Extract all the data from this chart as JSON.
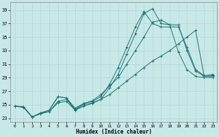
{
  "xlabel": "Humidex (Indice chaleur)",
  "xlim": [
    -0.5,
    23.5
  ],
  "ylim": [
    22.5,
    40.2
  ],
  "yticks": [
    23,
    25,
    27,
    29,
    31,
    33,
    35,
    37,
    39
  ],
  "xticks": [
    0,
    1,
    2,
    3,
    4,
    5,
    6,
    7,
    8,
    9,
    10,
    11,
    12,
    13,
    14,
    15,
    16,
    17,
    18,
    19,
    20,
    21,
    22,
    23
  ],
  "bg_color": "#c8e8e8",
  "grid_color": "#b0d4d4",
  "line_color": "#1a7070",
  "lines": [
    {
      "x": [
        0,
        1,
        2,
        3,
        4,
        5,
        6,
        7,
        8,
        9,
        10,
        11,
        12,
        13,
        14,
        15,
        16,
        17,
        18,
        19,
        20,
        21,
        22,
        23
      ],
      "y": [
        24.8,
        24.7,
        23.2,
        23.8,
        24.2,
        26.2,
        26.0,
        24.2,
        25.0,
        25.3,
        25.8,
        27.5,
        29.5,
        32.5,
        35.5,
        38.5,
        39.2,
        37.0,
        36.8,
        36.8,
        33.0,
        30.0,
        29.2,
        29.2
      ]
    },
    {
      "x": [
        0,
        1,
        2,
        3,
        4,
        5,
        6,
        7,
        8,
        9,
        10,
        11,
        12,
        13,
        14,
        15,
        16,
        17,
        18,
        19,
        20,
        21,
        22,
        23
      ],
      "y": [
        24.8,
        24.7,
        23.2,
        23.8,
        24.2,
        26.2,
        26.0,
        24.5,
        25.2,
        25.5,
        26.2,
        28.0,
        30.5,
        33.5,
        36.5,
        38.8,
        37.0,
        36.5,
        36.5,
        36.5,
        33.5,
        30.2,
        29.3,
        29.5
      ]
    },
    {
      "x": [
        0,
        1,
        2,
        3,
        4,
        5,
        6,
        7,
        8,
        9,
        10,
        11,
        12,
        13,
        14,
        15,
        16,
        17,
        18,
        19,
        20,
        21,
        22,
        23
      ],
      "y": [
        24.8,
        24.6,
        23.2,
        23.7,
        24.0,
        25.5,
        25.8,
        24.3,
        25.2,
        25.6,
        26.5,
        27.8,
        29.0,
        31.0,
        33.0,
        35.0,
        37.2,
        37.5,
        36.8,
        32.8,
        30.2,
        29.2,
        29.0,
        29.0
      ]
    },
    {
      "x": [
        0,
        1,
        2,
        3,
        4,
        5,
        6,
        7,
        8,
        9,
        10,
        11,
        12,
        13,
        14,
        15,
        16,
        17,
        18,
        19,
        20,
        21,
        22,
        23
      ],
      "y": [
        24.8,
        24.7,
        23.2,
        23.7,
        24.0,
        25.3,
        25.5,
        24.2,
        24.8,
        25.2,
        25.8,
        26.5,
        27.5,
        28.5,
        29.5,
        30.5,
        31.5,
        32.2,
        33.0,
        34.0,
        35.0,
        36.0,
        29.2,
        29.3
      ]
    }
  ]
}
